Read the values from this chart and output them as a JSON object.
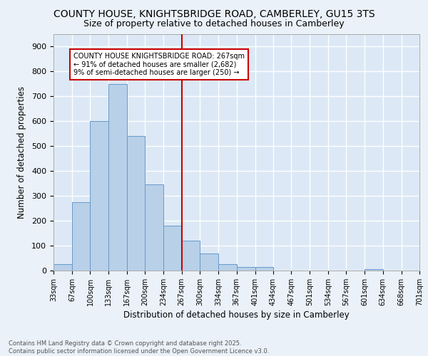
{
  "title1": "COUNTY HOUSE, KNIGHTSBRIDGE ROAD, CAMBERLEY, GU15 3TS",
  "title2": "Size of property relative to detached houses in Camberley",
  "xlabel": "Distribution of detached houses by size in Camberley",
  "ylabel": "Number of detached properties",
  "bin_edges": [
    33,
    67,
    100,
    133,
    167,
    200,
    234,
    267,
    300,
    334,
    367,
    401,
    434,
    467,
    501,
    534,
    567,
    601,
    634,
    668,
    701
  ],
  "bar_heights": [
    25,
    275,
    600,
    750,
    540,
    345,
    180,
    120,
    68,
    25,
    15,
    15,
    0,
    0,
    0,
    0,
    0,
    5,
    0,
    0
  ],
  "bar_color": "#b8d0e8",
  "bar_edge_color": "#6699cc",
  "vline_x": 267,
  "vline_color": "#cc0000",
  "ylim": [
    0,
    950
  ],
  "yticks": [
    0,
    100,
    200,
    300,
    400,
    500,
    600,
    700,
    800,
    900
  ],
  "annotation_line1": "COUNTY HOUSE KNIGHTSBRIDGE ROAD: 267sqm",
  "annotation_line2": "← 91% of detached houses are smaller (2,682)",
  "annotation_line3": "9% of semi-detached houses are larger (250) →",
  "background_color": "#dce8f5",
  "fig_background": "#eaf1f8",
  "grid_color": "#ffffff",
  "footer_line1": "Contains HM Land Registry data © Crown copyright and database right 2025.",
  "footer_line2": "Contains public sector information licensed under the Open Government Licence v3.0.",
  "title1_fontsize": 10,
  "title2_fontsize": 9,
  "tick_labels": [
    "33sqm",
    "67sqm",
    "100sqm",
    "133sqm",
    "167sqm",
    "200sqm",
    "234sqm",
    "267sqm",
    "300sqm",
    "334sqm",
    "367sqm",
    "401sqm",
    "434sqm",
    "467sqm",
    "501sqm",
    "534sqm",
    "567sqm",
    "601sqm",
    "634sqm",
    "668sqm",
    "701sqm"
  ]
}
